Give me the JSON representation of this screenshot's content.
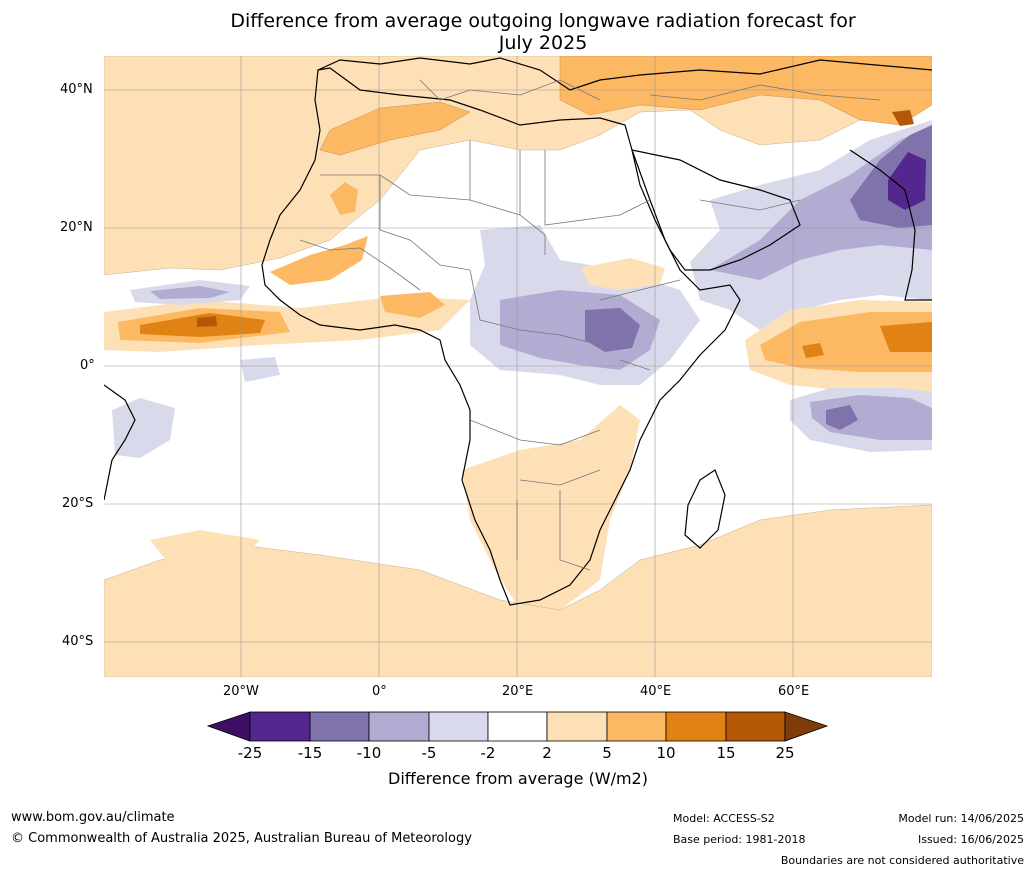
{
  "title_line1": "Difference from average outgoing longwave radiation forecast for",
  "title_line2": "July 2025",
  "lat_labels": [
    "40°N",
    "20°N",
    "0°",
    "20°S",
    "40°S"
  ],
  "lon_labels": [
    "20°W",
    "0°",
    "20°E",
    "40°E",
    "60°E"
  ],
  "colorbar": {
    "title": "Difference from average (W/m2)",
    "ticks": [
      "-25",
      "-15",
      "-10",
      "-5",
      "-2",
      "2",
      "5",
      "10",
      "15",
      "25"
    ],
    "colors": [
      "#3f0f66",
      "#54278f",
      "#8073ac",
      "#b2abd2",
      "#d8daeb",
      "#ffffff",
      "#fee0b6",
      "#fdb863",
      "#e08214",
      "#b35806",
      "#7f3b08"
    ]
  },
  "footer": {
    "url": "www.bom.gov.au/climate",
    "copyright": "© Commonwealth of Australia 2025, Australian Bureau of Meteorology",
    "model": "Model: ACCESS-S2",
    "base_period": "Base period: 1981-2018",
    "model_run": "Model run: 14/06/2025",
    "issued": "Issued: 16/06/2025",
    "disclaimer": "Boundaries are not considered authoritative"
  }
}
